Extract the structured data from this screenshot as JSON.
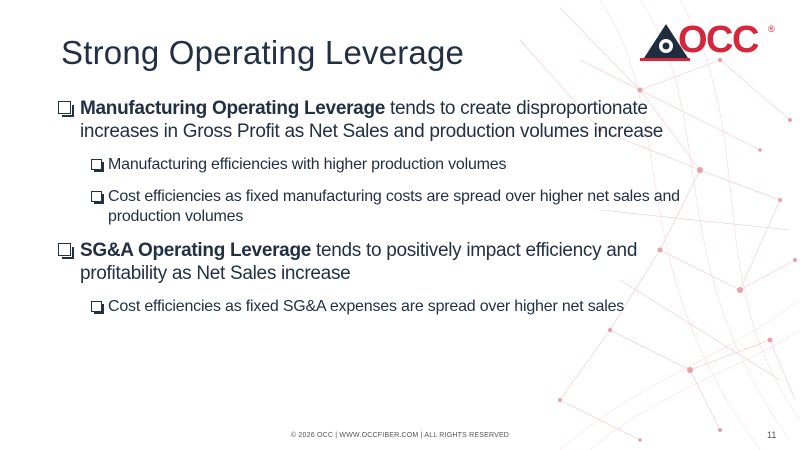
{
  "slide": {
    "title": "Strong Operating Leverage",
    "logo": {
      "text": "OCC",
      "registered": "®",
      "brand_color": "#d6263b",
      "mark_color": "#1f2d3d"
    },
    "bullets": [
      {
        "bold": "Manufacturing Operating Leverage",
        "text": " tends to create disproportionate increases in Gross Profit as Net Sales and production volumes increase",
        "sub": [
          {
            "text": "Manufacturing efficiencies with higher production volumes"
          },
          {
            "text": "Cost efficiencies as fixed manufacturing costs are spread over higher net sales and production volumes"
          }
        ]
      },
      {
        "bold": "SG&A Operating Leverage",
        "text": " tends to positively impact efficiency and profitability as Net Sales increase",
        "sub": [
          {
            "text": "Cost efficiencies as fixed SG&A expenses are spread over higher net sales"
          }
        ]
      }
    ],
    "footer": "© 2026 OCC  |  WWW.OCCFIBER.COM  |  ALL RIGHTS RESERVED",
    "page_number": "11",
    "text_color": "#233044",
    "network_color": "#e8a7ae"
  }
}
